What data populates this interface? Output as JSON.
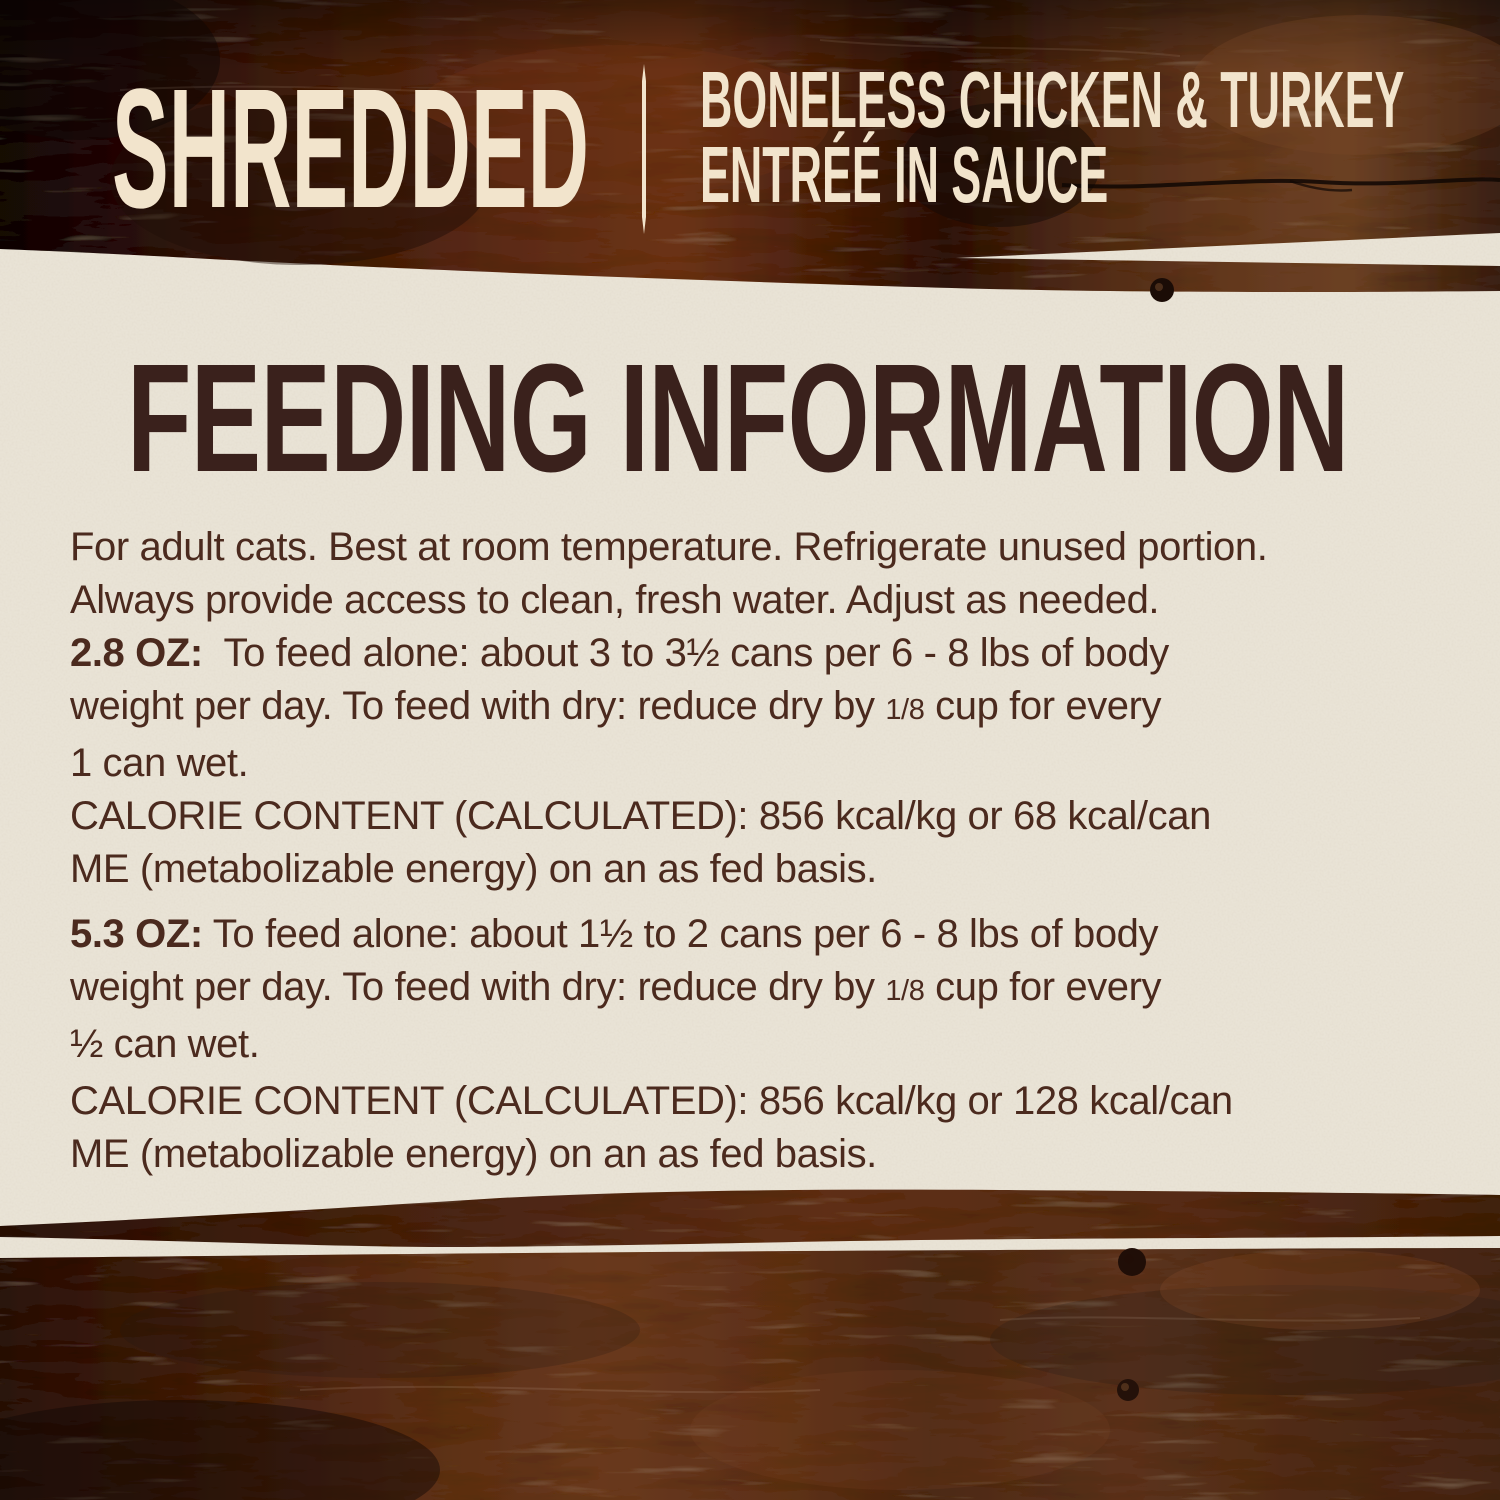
{
  "header": {
    "product_line": "SHREDDED",
    "variant_lines": [
      "BONELESS CHICKEN & TURKEY",
      "ENTRÉÉ IN SAUCE"
    ]
  },
  "panel": {
    "title": "FEEDING INFORMATION",
    "paragraphs": [
      {
        "gap": 0,
        "lines": [
          [
            {
              "t": "For adult cats. Best at room temperature. Refrigerate unused portion.",
              "w": "n"
            }
          ],
          [
            {
              "t": "Always provide access to clean, fresh water. Adjust as needed.",
              "w": "n"
            }
          ]
        ]
      },
      {
        "gap": 0,
        "lines": [
          [
            {
              "t": "2.8 OZ:",
              "w": "b"
            },
            {
              "t": "  To feed alone: about 3 to 3½ cans per 6 - 8 lbs of body",
              "w": "n"
            }
          ],
          [
            {
              "t": "weight per day. To feed with dry: reduce dry by ",
              "w": "n"
            },
            {
              "t": "1/8",
              "w": "f"
            },
            {
              "t": " cup for every",
              "w": "n"
            }
          ],
          [
            {
              "t": "1 can wet.",
              "w": "n"
            }
          ]
        ]
      },
      {
        "gap": 0,
        "lines": [
          [
            {
              "t": "CALORIE CONTENT (CALCULATED): 856 kcal/kg or 68 kcal/can",
              "w": "n"
            }
          ],
          [
            {
              "t": "ME (metabolizable energy) on an as fed basis.",
              "w": "n"
            }
          ]
        ]
      },
      {
        "gap": 12,
        "lines": [
          [
            {
              "t": "5.3 OZ:",
              "w": "b"
            },
            {
              "t": " To feed alone: about 1½ to 2 cans per 6 - 8 lbs of body",
              "w": "n"
            }
          ],
          [
            {
              "t": "weight per day. To feed with dry: reduce dry by ",
              "w": "n"
            },
            {
              "t": "1/8",
              "w": "f"
            },
            {
              "t": " cup for every",
              "w": "n"
            }
          ],
          [
            {
              "t": "½ can wet.",
              "w": "n"
            }
          ]
        ]
      },
      {
        "gap": 4,
        "lines": [
          [
            {
              "t": "CALORIE CONTENT (CALCULATED): 856 kcal/kg or 128 kcal/can",
              "w": "n"
            }
          ],
          [
            {
              "t": "ME (metabolizable energy) on an as fed basis.",
              "w": "n"
            }
          ]
        ]
      }
    ]
  },
  "colors": {
    "panel_bg": "#e9e3d6",
    "header_text": "#f2e4cc",
    "heading_text": "#3a211c",
    "body_text": "#4b2a1e",
    "wood_dark": "#2a1209",
    "wood_mid": "#5a2a14",
    "wood_light": "#6b4024"
  }
}
